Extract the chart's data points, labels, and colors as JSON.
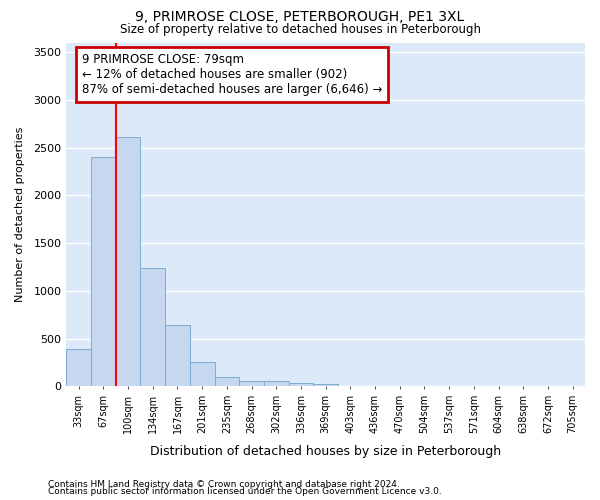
{
  "title": "9, PRIMROSE CLOSE, PETERBOROUGH, PE1 3XL",
  "subtitle": "Size of property relative to detached houses in Peterborough",
  "xlabel": "Distribution of detached houses by size in Peterborough",
  "ylabel": "Number of detached properties",
  "footnote1": "Contains HM Land Registry data © Crown copyright and database right 2024.",
  "footnote2": "Contains public sector information licensed under the Open Government Licence v3.0.",
  "bar_labels": [
    "33sqm",
    "67sqm",
    "100sqm",
    "134sqm",
    "167sqm",
    "201sqm",
    "235sqm",
    "268sqm",
    "302sqm",
    "336sqm",
    "369sqm",
    "403sqm",
    "436sqm",
    "470sqm",
    "504sqm",
    "537sqm",
    "571sqm",
    "604sqm",
    "638sqm",
    "672sqm",
    "705sqm"
  ],
  "bar_values": [
    390,
    2400,
    2610,
    1240,
    640,
    255,
    95,
    55,
    55,
    40,
    25,
    0,
    0,
    0,
    0,
    0,
    0,
    0,
    0,
    0,
    0
  ],
  "bar_color": "#c5d8f0",
  "bar_edge_color": "#7aadd4",
  "red_line_x": 1.5,
  "annotation_text": "9 PRIMROSE CLOSE: 79sqm\n← 12% of detached houses are smaller (902)\n87% of semi-detached houses are larger (6,646) →",
  "annotation_box_edge_color": "#cc0000",
  "ylim": [
    0,
    3600
  ],
  "yticks": [
    0,
    500,
    1000,
    1500,
    2000,
    2500,
    3000,
    3500
  ],
  "plot_bg_color": "#dce9f8",
  "figure_bg_color": "#ffffff",
  "grid_color": "#ffffff"
}
